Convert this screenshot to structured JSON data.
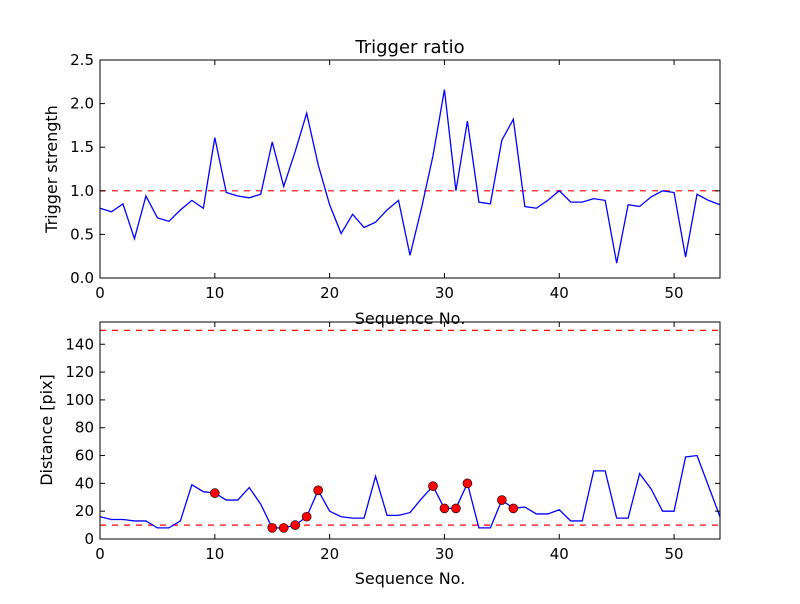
{
  "chart_data": [
    {
      "type": "line",
      "title": "Trigger ratio",
      "xlabel": "Sequence No.",
      "ylabel": "Trigger strength",
      "xlim": [
        0,
        54
      ],
      "ylim": [
        0,
        2.5
      ],
      "xticks": [
        "0",
        "10",
        "20",
        "30",
        "40",
        "50"
      ],
      "xtick_values": [
        0,
        10,
        20,
        30,
        40,
        50
      ],
      "yticks": [
        "0.0",
        "0.5",
        "1.0",
        "1.5",
        "2.0",
        "2.5"
      ],
      "ytick_values": [
        0,
        0.5,
        1.0,
        1.5,
        2.0,
        2.5
      ],
      "threshold_lines": [
        1.0
      ],
      "series_color": "#0000ff",
      "threshold_color": "#ff0000",
      "values": [
        0.8,
        0.76,
        0.85,
        0.45,
        0.94,
        0.69,
        0.65,
        0.78,
        0.89,
        0.8,
        1.61,
        0.98,
        0.94,
        0.92,
        0.96,
        1.56,
        1.05,
        1.45,
        1.89,
        1.3,
        0.84,
        0.51,
        0.73,
        0.58,
        0.64,
        0.78,
        0.89,
        0.26,
        0.8,
        1.4,
        2.16,
        1.0,
        1.8,
        0.87,
        0.85,
        1.58,
        1.82,
        0.82,
        0.8,
        0.89,
        1.0,
        0.87,
        0.87,
        0.91,
        0.89,
        0.17,
        0.84,
        0.82,
        0.93,
        1.0,
        0.98,
        0.24,
        0.96,
        0.89,
        0.84
      ]
    },
    {
      "type": "line",
      "title": "",
      "xlabel": "Sequence No.",
      "ylabel": "Distance [pix]",
      "xlim": [
        0,
        54
      ],
      "ylim": [
        0,
        156
      ],
      "xticks": [
        "0",
        "10",
        "20",
        "30",
        "40",
        "50"
      ],
      "xtick_values": [
        0,
        10,
        20,
        30,
        40,
        50
      ],
      "yticks": [
        "0",
        "20",
        "40",
        "60",
        "80",
        "100",
        "120",
        "140"
      ],
      "ytick_values": [
        0,
        20,
        40,
        60,
        80,
        100,
        120,
        140
      ],
      "threshold_lines": [
        10,
        150
      ],
      "series_color": "#0000ff",
      "threshold_color": "#ff0000",
      "marker_color": "#ff0000",
      "values": [
        16,
        14,
        14,
        13,
        13,
        8,
        8,
        13,
        39,
        34,
        33,
        28,
        28,
        37,
        25,
        8,
        8,
        10,
        16,
        35,
        20,
        16,
        15,
        15,
        45,
        17,
        17,
        19,
        29,
        38,
        22,
        22,
        40,
        8,
        8,
        28,
        22,
        23,
        18,
        18,
        21,
        13,
        13,
        49,
        49,
        15,
        15,
        47,
        36,
        20,
        20,
        59,
        60,
        38,
        16
      ],
      "marked_points": [
        10,
        15,
        16,
        17,
        18,
        19,
        29,
        30,
        31,
        32,
        35,
        36
      ]
    }
  ]
}
